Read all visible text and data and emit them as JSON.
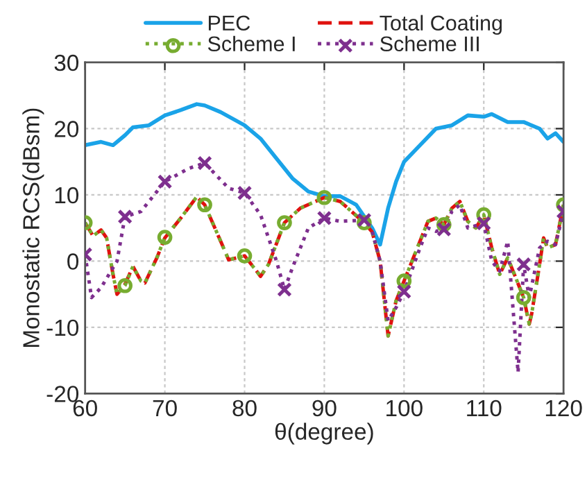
{
  "chart_data": {
    "type": "line",
    "xlabel": "θ(degree)",
    "ylabel": "Monostatic RCS(dBsm)",
    "xlim": [
      60,
      120
    ],
    "xticks": [
      60,
      70,
      80,
      90,
      100,
      110,
      120
    ],
    "ylim": [
      -20,
      30
    ],
    "yticks": [
      -20,
      -10,
      0,
      10,
      20,
      30
    ],
    "grid": true,
    "legend": "top",
    "series": [
      {
        "name": "PEC",
        "color": "#1aa3e8",
        "line_style": "solid",
        "marker": "none",
        "x": [
          60,
          62,
          63.5,
          65,
          66,
          68,
          70,
          72,
          74,
          75,
          77,
          80,
          82,
          84,
          86,
          88,
          90,
          92,
          94,
          96,
          97,
          98,
          99,
          100,
          102,
          104,
          106,
          108,
          110,
          111,
          113,
          115,
          117,
          118,
          119,
          120
        ],
        "values": [
          17.5,
          18,
          17.5,
          19,
          20.2,
          20.5,
          22,
          22.8,
          23.7,
          23.5,
          22.5,
          20.5,
          18.5,
          15.5,
          12.5,
          10.5,
          9.8,
          9.8,
          8.5,
          5,
          2.5,
          8,
          12,
          15,
          17.5,
          20,
          20.5,
          22,
          21.8,
          22.2,
          21,
          21,
          20,
          18.5,
          19.3,
          18
        ]
      },
      {
        "name": "Total Coating",
        "color": "#e0120f",
        "line_style": "dashed",
        "marker": "none",
        "x": [
          60,
          61,
          62,
          62.7,
          63.5,
          64,
          65,
          66,
          67,
          67.5,
          69,
          70,
          72,
          74,
          75,
          77,
          78,
          80,
          81.5,
          82,
          83,
          85,
          87,
          90,
          92,
          95,
          96,
          97,
          98,
          99,
          100,
          101,
          103,
          104,
          105,
          106,
          107,
          108,
          109,
          110,
          111,
          112,
          113,
          114,
          115,
          115.7,
          116,
          117,
          117.5,
          118,
          119,
          120
        ],
        "values": [
          5.8,
          3.8,
          4.7,
          3.5,
          -2,
          -5,
          -3.5,
          -0.8,
          -3,
          -3.3,
          0.5,
          3.5,
          6.5,
          9.7,
          8.5,
          3,
          0.2,
          0.8,
          -1.5,
          -2.3,
          -0.5,
          5.8,
          8,
          9.6,
          9,
          5.8,
          4.4,
          0,
          -11.3,
          -6,
          -3,
          0,
          6,
          6.5,
          5.5,
          8,
          9,
          6,
          5,
          7,
          2,
          -2,
          0.5,
          -2.5,
          -5.5,
          -9.5,
          -8,
          -0.5,
          3.5,
          2,
          2.5,
          8.5
        ]
      },
      {
        "name": "Scheme I",
        "color": "#77ac30",
        "line_style": "dotted",
        "marker": "none",
        "x": [
          60,
          61,
          62,
          62.7,
          63.5,
          64,
          65,
          66,
          67,
          67.5,
          69,
          70,
          72,
          74,
          75,
          77,
          78,
          80,
          81.5,
          82,
          83,
          85,
          87,
          90,
          92,
          95,
          96,
          97,
          98,
          99,
          100,
          101,
          103,
          104,
          105,
          106,
          107,
          108,
          109,
          110,
          111,
          112,
          113,
          114,
          115,
          115.7,
          116,
          117,
          117.5,
          118,
          119,
          120
        ],
        "values": [
          5.8,
          3.8,
          4.7,
          3.5,
          -2,
          -5,
          -3.7,
          -0.8,
          -3,
          -3.3,
          0.5,
          3.6,
          6.5,
          9.7,
          8.5,
          3,
          0.2,
          0.8,
          -1.5,
          -2.3,
          -0.5,
          5.8,
          8,
          9.6,
          9,
          5.8,
          4.4,
          0,
          -11.3,
          -6,
          -3,
          0,
          6,
          6.5,
          5.5,
          8,
          9,
          6,
          5,
          7,
          2,
          -2,
          0.5,
          -2.5,
          -5.5,
          -9.5,
          -8,
          -0.5,
          3.5,
          2,
          2.5,
          8.5
        ]
      },
      {
        "type": "scatter",
        "color": "#77ac30",
        "marker": "circle",
        "x": [
          60,
          65,
          70,
          75,
          80,
          85,
          90,
          95,
          100,
          105,
          110,
          115,
          120
        ],
        "values": [
          5.8,
          -3.7,
          3.6,
          8.5,
          0.8,
          5.8,
          9.6,
          5.8,
          -3,
          5.5,
          7,
          -5.5,
          8.5
        ]
      },
      {
        "name": "Scheme III",
        "color": "#7e2f8e",
        "line_style": "dotted",
        "marker": "none",
        "x": [
          60,
          60.8,
          62,
          64,
          65,
          67,
          70,
          73,
          75,
          78,
          80,
          82,
          84,
          85,
          86,
          88,
          90,
          92,
          95,
          96,
          97,
          98,
          99,
          100,
          102,
          103,
          104,
          105,
          106,
          107,
          108,
          110,
          111,
          112,
          113,
          114.3,
          115,
          115.7,
          117,
          118,
          119,
          120
        ],
        "values": [
          1,
          -5.5,
          -4,
          0,
          6.7,
          7.5,
          12,
          14,
          14.8,
          11,
          10.3,
          7,
          0,
          -4.3,
          -1,
          5,
          6.5,
          6,
          6.2,
          4.5,
          0,
          -9,
          -7,
          -4.6,
          2,
          5,
          4.5,
          4.8,
          7.5,
          8.5,
          5,
          5.7,
          0,
          -1.5,
          3,
          -16.8,
          -0.5,
          -5.5,
          2,
          3,
          2.5,
          7.5
        ]
      },
      {
        "type": "scatter",
        "color": "#7e2f8e",
        "marker": "cross",
        "x": [
          60,
          65,
          70,
          75,
          80,
          85,
          90,
          95,
          100,
          105,
          110,
          115,
          120
        ],
        "values": [
          1,
          6.7,
          12,
          14.8,
          10.3,
          -4.3,
          6.5,
          6.2,
          -4.6,
          4.8,
          5.7,
          -0.5,
          7.5
        ]
      }
    ]
  }
}
